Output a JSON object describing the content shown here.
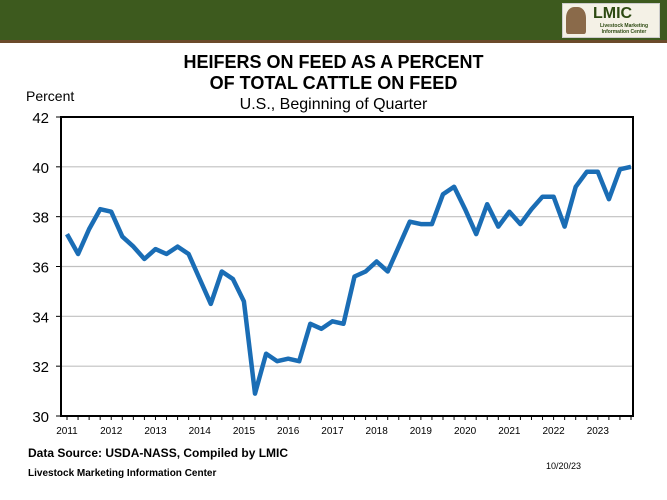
{
  "header": {
    "logo_text": "LMIC",
    "logo_sub": "Livestock Marketing Information Center"
  },
  "chart_data": {
    "type": "line",
    "title": "HEIFERS ON FEED AS A PERCENT OF TOTAL CATTLE ON FEED",
    "title_lines": [
      "HEIFERS ON FEED AS A PERCENT",
      "OF TOTAL CATTLE ON FEED"
    ],
    "subtitle": "U.S., Beginning of Quarter",
    "ylabel": "Percent",
    "ylim": [
      30,
      42
    ],
    "yticks": [
      30,
      32,
      34,
      36,
      38,
      40,
      42
    ],
    "xticks": [
      "2011",
      "2012",
      "2013",
      "2014",
      "2015",
      "2016",
      "2017",
      "2018",
      "2019",
      "2020",
      "2021",
      "2022",
      "2023"
    ],
    "grid": true,
    "color": "#1a6db5",
    "values": [
      37.3,
      36.5,
      37.5,
      38.3,
      38.2,
      37.2,
      36.8,
      36.3,
      36.7,
      36.5,
      36.8,
      36.5,
      35.5,
      34.5,
      35.8,
      35.5,
      34.6,
      30.9,
      32.5,
      32.2,
      32.3,
      32.2,
      33.7,
      33.5,
      33.8,
      33.7,
      35.6,
      35.8,
      36.2,
      35.8,
      36.8,
      37.8,
      37.7,
      37.7,
      38.9,
      39.2,
      38.3,
      37.3,
      38.5,
      37.6,
      38.2,
      37.7,
      38.3,
      38.8,
      38.8,
      37.6,
      39.2,
      39.8,
      39.8,
      38.7,
      39.9,
      40.0
    ]
  },
  "footer": {
    "source": "Data Source:  USDA-NASS, Compiled  by LMIC",
    "org": "Livestock Marketing Information Center",
    "date": "10/20/23"
  }
}
